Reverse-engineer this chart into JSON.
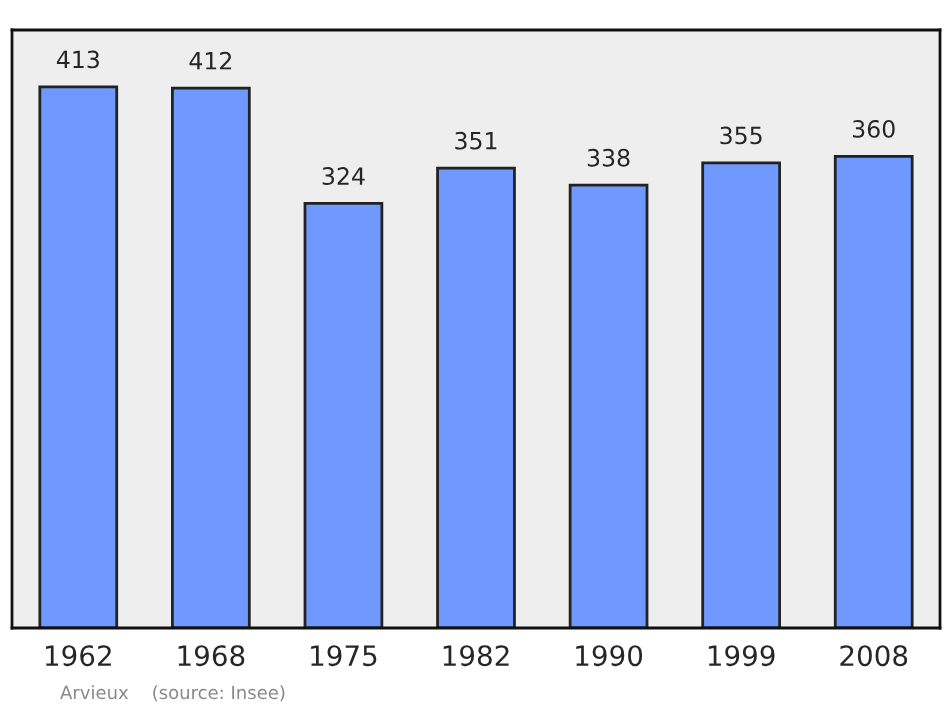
{
  "chart_data": {
    "type": "bar",
    "categories": [
      "1962",
      "1968",
      "1975",
      "1982",
      "1990",
      "1999",
      "2008"
    ],
    "values": [
      413,
      412,
      324,
      351,
      338,
      355,
      360
    ],
    "color": "#7099ff",
    "data_labels": true,
    "grid": false,
    "legend": false,
    "tick_labels": "x",
    "annotations": [
      "Arvieux    (source: Insee)"
    ]
  }
}
